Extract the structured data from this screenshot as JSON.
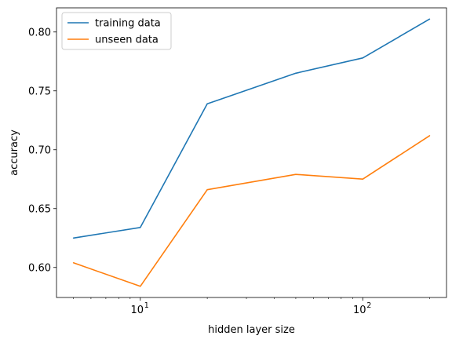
{
  "chart_data": {
    "type": "line",
    "x_scale": "log",
    "x": [
      5,
      10,
      20,
      50,
      100,
      200
    ],
    "series": [
      {
        "name": "training data",
        "color": "#1f77b4",
        "values": [
          0.625,
          0.634,
          0.739,
          0.765,
          0.778,
          0.811
        ]
      },
      {
        "name": "unseen data",
        "color": "#ff7f0e",
        "values": [
          0.604,
          0.584,
          0.666,
          0.679,
          0.675,
          0.712
        ]
      }
    ],
    "xlabel": "hidden layer size",
    "ylabel": "accuracy",
    "xlim": [
      4.2,
      238
    ],
    "ylim": [
      0.5745,
      0.8205
    ],
    "x_ticks": [
      {
        "value": 10,
        "base": "10",
        "exp": "1"
      },
      {
        "value": 100,
        "base": "10",
        "exp": "2"
      }
    ],
    "y_ticks": [
      {
        "value": 0.6,
        "label": "0.60"
      },
      {
        "value": 0.65,
        "label": "0.65"
      },
      {
        "value": 0.7,
        "label": "0.70"
      },
      {
        "value": 0.75,
        "label": "0.75"
      },
      {
        "value": 0.8,
        "label": "0.80"
      }
    ],
    "grid": false,
    "legend_position": "upper-left"
  }
}
